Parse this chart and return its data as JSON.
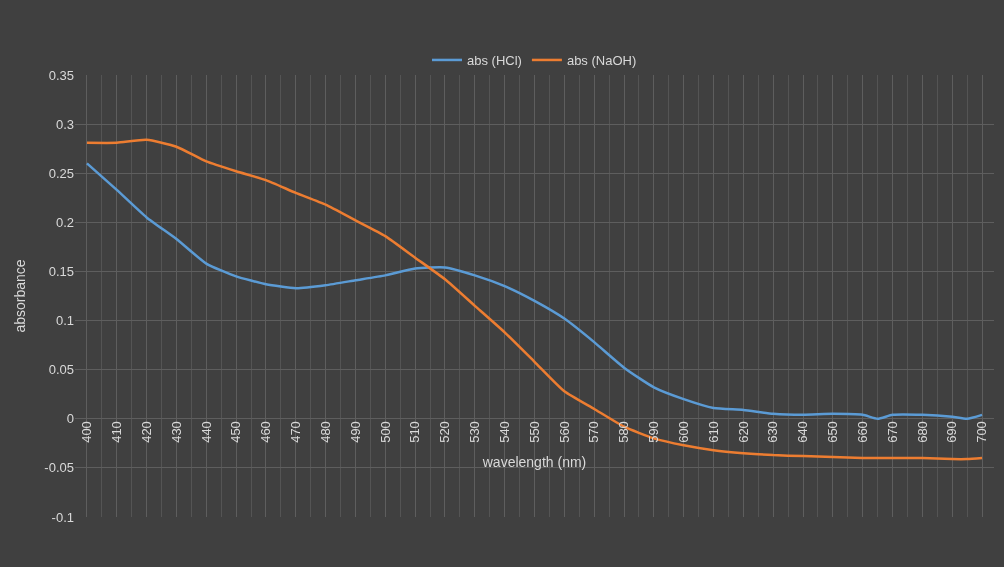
{
  "chart_data": {
    "type": "line",
    "xlabel": "wavelength (nm)",
    "ylabel": "absorbance",
    "x": [
      400,
      410,
      420,
      430,
      440,
      450,
      460,
      470,
      480,
      490,
      500,
      510,
      520,
      530,
      540,
      550,
      560,
      570,
      580,
      590,
      600,
      610,
      620,
      630,
      640,
      650,
      660,
      665,
      670,
      680,
      690,
      695,
      700
    ],
    "series": [
      {
        "name": "abs (HCl)",
        "color": "#5b9bd5",
        "values": [
          0.26,
          0.233,
          0.205,
          0.183,
          0.158,
          0.145,
          0.137,
          0.133,
          0.136,
          0.141,
          0.146,
          0.153,
          0.154,
          0.146,
          0.135,
          0.12,
          0.102,
          0.078,
          0.052,
          0.032,
          0.02,
          0.011,
          0.009,
          0.005,
          0.004,
          0.005,
          0.004,
          0.0,
          0.004,
          0.004,
          0.002,
          0.0,
          0.004
        ]
      },
      {
        "name": "abs (NaOH)",
        "color": "#ed7d31",
        "values": [
          0.281,
          0.281,
          0.284,
          0.277,
          0.262,
          0.252,
          0.243,
          0.23,
          0.218,
          0.202,
          0.186,
          0.164,
          0.142,
          0.115,
          0.088,
          0.058,
          0.028,
          0.01,
          -0.008,
          -0.02,
          -0.027,
          -0.032,
          -0.035,
          -0.037,
          -0.038,
          -0.039,
          -0.04,
          -0.04,
          -0.04,
          -0.04,
          -0.041,
          -0.041,
          -0.04
        ]
      }
    ],
    "xlim": [
      396,
      704
    ],
    "xticks": [
      400,
      410,
      420,
      430,
      440,
      450,
      460,
      470,
      480,
      490,
      500,
      510,
      520,
      530,
      540,
      550,
      560,
      570,
      580,
      590,
      600,
      610,
      620,
      630,
      640,
      650,
      660,
      670,
      680,
      690,
      700
    ],
    "ylim": [
      -0.1,
      0.35
    ],
    "yticks": [
      -0.1,
      -0.05,
      0,
      0.05,
      0.1,
      0.15,
      0.2,
      0.25,
      0.3,
      0.35
    ],
    "grid": true,
    "legend": "top",
    "marker": "none",
    "line_style": "solid"
  }
}
